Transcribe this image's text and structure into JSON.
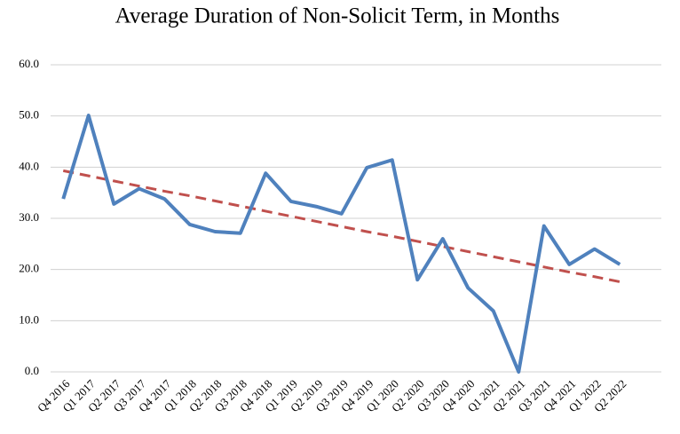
{
  "chart_data": {
    "type": "line",
    "title": "Average Duration of Non-Solicit Term, in Months",
    "categories": [
      "Q4 2016",
      "Q1 2017",
      "Q2 2017",
      "Q3 2017",
      "Q4 2017",
      "Q1 2018",
      "Q2 2018",
      "Q3 2018",
      "Q4 2018",
      "Q1 2019",
      "Q2 2019",
      "Q3 2019",
      "Q4 2019",
      "Q1 2020",
      "Q2 2020",
      "Q3 2020",
      "Q4 2020",
      "Q1 2021",
      "Q2 2021",
      "Q3 2021",
      "Q4 2021",
      "Q1 2022",
      "Q2 2022"
    ],
    "series": [
      {
        "color": "#4f81bd",
        "style": "solid",
        "values": [
          33.8,
          50.1,
          32.8,
          35.8,
          33.8,
          28.8,
          27.4,
          27.1,
          38.8,
          33.3,
          32.3,
          30.9,
          39.9,
          41.4,
          18.0,
          26.0,
          16.4,
          11.9,
          0.0,
          28.5,
          21.0,
          24.0,
          21.0
        ]
      },
      {
        "color": "#c0504d",
        "style": "dashed",
        "values": [
          39.3,
          38.3,
          37.3,
          36.3,
          35.3,
          34.4,
          33.4,
          32.4,
          31.4,
          30.4,
          29.4,
          28.4,
          27.4,
          26.5,
          25.5,
          24.5,
          23.5,
          22.5,
          21.5,
          20.5,
          19.5,
          18.6,
          17.6
        ]
      }
    ],
    "ylim": [
      0,
      60
    ],
    "yticks": [
      {
        "value": 0,
        "label": "0.0"
      },
      {
        "value": 10,
        "label": "10.0"
      },
      {
        "value": 20,
        "label": "20.0"
      },
      {
        "value": 30,
        "label": "30.0"
      },
      {
        "value": 40,
        "label": "40.0"
      },
      {
        "value": 50,
        "label": "50.0"
      },
      {
        "value": 60,
        "label": "60.0"
      }
    ],
    "grid": true
  }
}
